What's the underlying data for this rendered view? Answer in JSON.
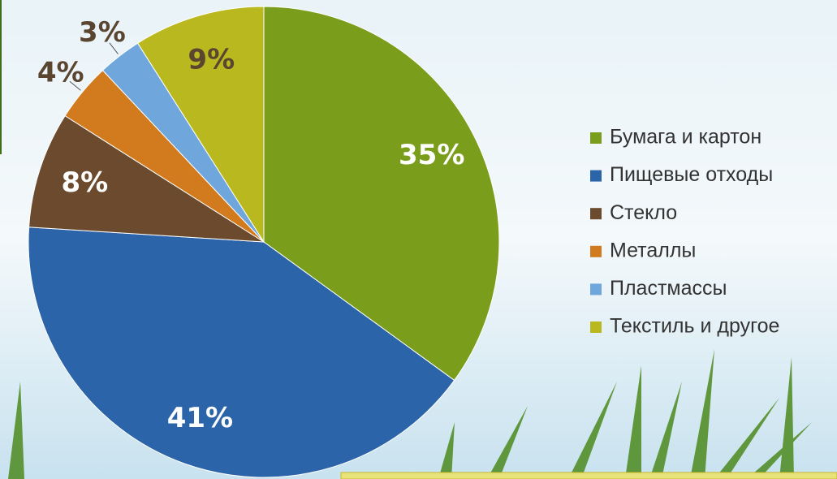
{
  "chart_data": {
    "type": "pie",
    "categories": [
      "Бумага и картон",
      "Пищевые отходы",
      "Стекло",
      "Металлы",
      "Пластмассы",
      "Текстиль и другое"
    ],
    "values": [
      35,
      41,
      8,
      4,
      3,
      9
    ],
    "value_labels": [
      "35%",
      "41%",
      "8%",
      "4%",
      "3%",
      "9%"
    ],
    "colors": [
      "#7a9e1c",
      "#2b64a8",
      "#6b4a2e",
      "#d27a1e",
      "#6fa6dc",
      "#b9b81e"
    ],
    "legend": "right"
  }
}
